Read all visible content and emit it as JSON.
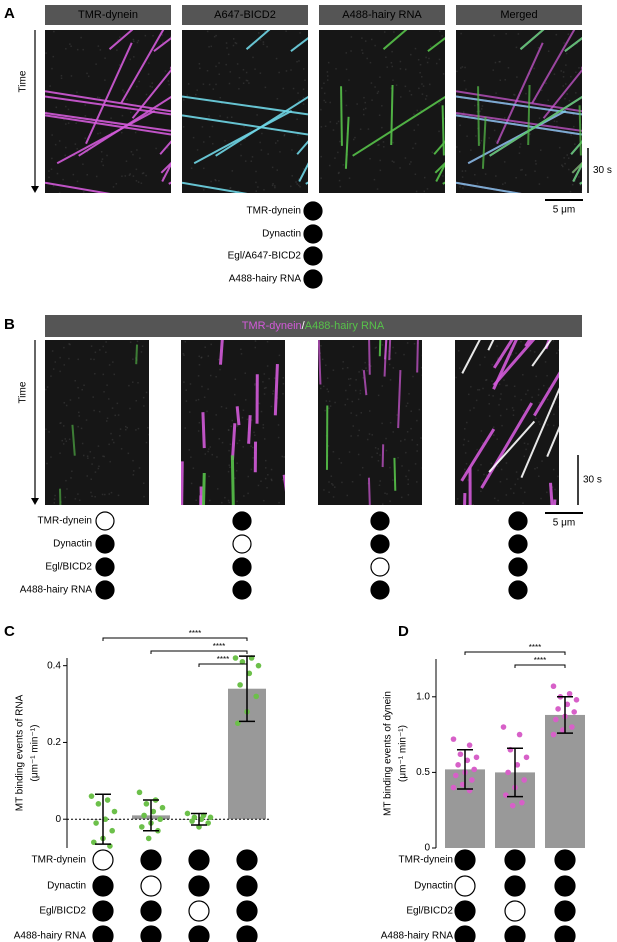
{
  "panel_a": {
    "label": "A",
    "channels": [
      {
        "name": "TMR-dynein",
        "color": "#d25ad9"
      },
      {
        "name": "A647-BICD2",
        "color": "#6fd6e6"
      },
      {
        "name": "A488-hairy RNA",
        "color": "#57c24a"
      },
      {
        "name": "Merged",
        "color": "#ffffff"
      }
    ],
    "time_label": "Time",
    "time_scale": "30 s",
    "length_scale": "5 μm",
    "components": [
      {
        "label": "TMR-dynein",
        "present": [
          true
        ]
      },
      {
        "label": "Dynactin",
        "present": [
          true
        ]
      },
      {
        "label": "Egl/A647-BICD2",
        "present": [
          true
        ]
      },
      {
        "label": "A488-hairy RNA",
        "present": [
          true
        ]
      }
    ]
  },
  "panel_b": {
    "label": "B",
    "header": [
      {
        "text": "TMR-dynein",
        "color": "#d25ad9"
      },
      {
        "text": "/",
        "color": "#ffffff"
      },
      {
        "text": "A488-hairy RNA",
        "color": "#57c24a"
      }
    ],
    "time_label": "Time",
    "time_scale": "30 s",
    "length_scale": "5 μm",
    "components": [
      {
        "label": "TMR-dynein",
        "present": [
          false,
          true,
          true,
          true
        ]
      },
      {
        "label": "Dynactin",
        "present": [
          true,
          false,
          true,
          true
        ]
      },
      {
        "label": "Egl/BICD2",
        "present": [
          true,
          true,
          false,
          true
        ]
      },
      {
        "label": "A488-hairy RNA",
        "present": [
          true,
          true,
          true,
          true
        ]
      }
    ]
  },
  "chart_data": [
    {
      "type": "bar",
      "panel_label": "C",
      "y_label": [
        "MT binding events of RNA",
        "(μm⁻¹ min⁻¹)"
      ],
      "values": [
        0,
        0.01,
        0,
        0.34
      ],
      "errors": [
        0.065,
        0.04,
        0.015,
        0.085
      ],
      "points": [
        [
          0.06,
          0.05,
          0.04,
          0.02,
          0,
          -0.01,
          -0.03,
          -0.05,
          -0.06,
          -0.07
        ],
        [
          0.07,
          0.05,
          0.04,
          0.03,
          0.02,
          0.01,
          0,
          -0.01,
          -0.02,
          -0.03,
          -0.05
        ],
        [
          0.015,
          0.01,
          0.005,
          0.005,
          0,
          -0.005,
          -0.01,
          -0.02
        ],
        [
          0.42,
          0.42,
          0.41,
          0.4,
          0.38,
          0.35,
          0.32,
          0.28,
          0.25
        ]
      ],
      "color": "#999999",
      "point_color": "#6cc04a",
      "ylim": [
        -0.075,
        0.42
      ],
      "yticks": [
        0,
        0.2,
        0.4
      ],
      "zero_line": true,
      "significance": [
        {
          "from": 0,
          "to": 3,
          "label": "****"
        },
        {
          "from": 1,
          "to": 3,
          "label": "****"
        },
        {
          "from": 2,
          "to": 3,
          "label": "****"
        }
      ],
      "components": [
        {
          "label": "TMR-dynein",
          "present": [
            false,
            true,
            true,
            true
          ]
        },
        {
          "label": "Dynactin",
          "present": [
            true,
            false,
            true,
            true
          ]
        },
        {
          "label": "Egl/BICD2",
          "present": [
            true,
            true,
            false,
            true
          ]
        },
        {
          "label": "A488-hairy RNA",
          "present": [
            true,
            true,
            true,
            true
          ]
        }
      ]
    },
    {
      "type": "bar",
      "panel_label": "D",
      "y_label": [
        "MT binding events of dynein",
        "(μm⁻¹ min⁻¹)"
      ],
      "values": [
        0.52,
        0.5,
        0.88
      ],
      "errors": [
        0.13,
        0.16,
        0.12
      ],
      "points": [
        [
          0.72,
          0.68,
          0.62,
          0.6,
          0.58,
          0.55,
          0.52,
          0.5,
          0.48,
          0.45,
          0.42,
          0.4,
          0.38
        ],
        [
          0.8,
          0.75,
          0.65,
          0.6,
          0.55,
          0.5,
          0.45,
          0.4,
          0.35,
          0.3,
          0.28
        ],
        [
          1.07,
          1.02,
          1.0,
          0.98,
          0.95,
          0.92,
          0.9,
          0.87,
          0.85,
          0.8,
          0.78,
          0.75
        ]
      ],
      "color": "#999999",
      "point_color": "#d760c8",
      "ylim": [
        0,
        1.25
      ],
      "yticks": [
        0,
        0.5,
        {
          "value": 1,
          "label": "1.0"
        }
      ],
      "zero_line": false,
      "significance": [
        {
          "from": 0,
          "to": 2,
          "label": "****"
        },
        {
          "from": 1,
          "to": 2,
          "label": "****"
        }
      ],
      "components": [
        {
          "label": "TMR-dynein",
          "present": [
            true,
            true,
            true
          ]
        },
        {
          "label": "Dynactin",
          "present": [
            false,
            true,
            true
          ]
        },
        {
          "label": "Egl/BICD2",
          "present": [
            true,
            false,
            true
          ]
        },
        {
          "label": "A488-hairy RNA",
          "present": [
            true,
            true,
            true
          ]
        }
      ]
    }
  ]
}
